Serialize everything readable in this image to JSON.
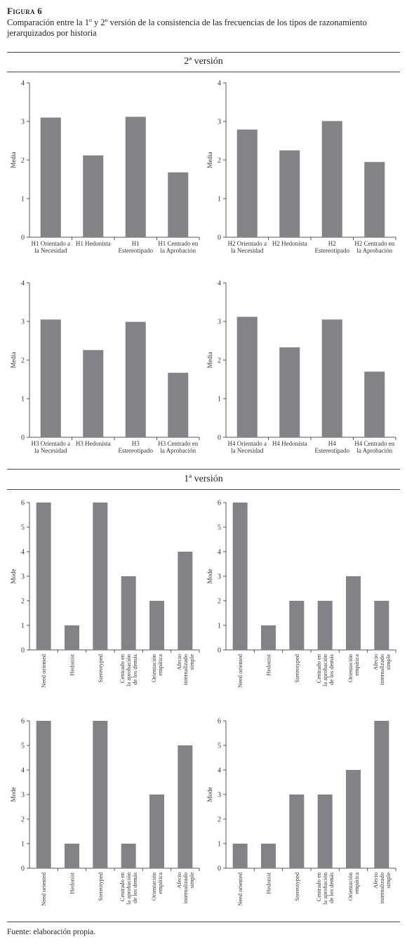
{
  "figure": {
    "label": "Figura 6",
    "caption": "Comparación entre la 1º y 2º versión de la consistencia de las frecuencias de los tipos de razonamiento jerarquizados por historia",
    "source": "Fuente: elaboración propia."
  },
  "sections": {
    "second": "2ª versión",
    "first": "1ª versión"
  },
  "chart_data": [
    {
      "type": "bar",
      "title": "",
      "xlabel": "",
      "ylabel": "Media",
      "ylim": [
        0,
        4
      ],
      "yticks": [
        "0",
        "1",
        "2",
        "3",
        "4"
      ],
      "color": "#838387",
      "categories": [
        "H1 Orientado a la Necesidad",
        "H1 Hedonista",
        "H1 Estereotipado",
        "H1 Centrado en la Aprobación"
      ],
      "values": [
        3.1,
        2.12,
        3.12,
        1.68
      ]
    },
    {
      "type": "bar",
      "title": "",
      "xlabel": "",
      "ylabel": "Media",
      "ylim": [
        0,
        4
      ],
      "yticks": [
        "0",
        "1",
        "2",
        "3",
        "4"
      ],
      "color": "#838387",
      "categories": [
        "H2 Orientado a la Necesidad",
        "H2 Hedonista",
        "H2 Estereotipado",
        "H2 Centrado en la Aprobación"
      ],
      "values": [
        2.79,
        2.25,
        3.01,
        1.95
      ]
    },
    {
      "type": "bar",
      "title": "",
      "xlabel": "",
      "ylabel": "Media",
      "ylim": [
        0,
        4
      ],
      "yticks": [
        "0",
        "1",
        "2",
        "3",
        "4"
      ],
      "color": "#838387",
      "categories": [
        "H3 Orientado a la Necesidad",
        "H3 Hedonista",
        "H3 Estereotipado",
        "H3 Centrado en la Aprobación"
      ],
      "values": [
        3.05,
        2.26,
        2.99,
        1.67
      ]
    },
    {
      "type": "bar",
      "title": "",
      "xlabel": "",
      "ylabel": "Media",
      "ylim": [
        0,
        4
      ],
      "yticks": [
        "0",
        "1",
        "2",
        "3",
        "4"
      ],
      "color": "#838387",
      "categories": [
        "H4 Orientado a la Necesidad",
        "H4 Hedonista",
        "H4 Estereotipado",
        "H4 Centrado en la Aprobación"
      ],
      "values": [
        3.12,
        2.33,
        3.05,
        1.7
      ]
    },
    {
      "type": "bar",
      "title": "",
      "xlabel": "",
      "ylabel": "Mode",
      "ylim": [
        0,
        6
      ],
      "yticks": [
        "0",
        "1",
        "2",
        "3",
        "4",
        "5",
        "6"
      ],
      "color": "#838387",
      "categories": [
        "Need oriented",
        "Hedonist",
        "Stereotyped",
        "Centrado en la aprobación de los demás",
        "Orientación empática",
        "Afecto internalizado simple"
      ],
      "values": [
        6,
        1,
        6,
        3,
        2,
        4
      ]
    },
    {
      "type": "bar",
      "title": "",
      "xlabel": "",
      "ylabel": "Mode",
      "ylim": [
        0,
        6
      ],
      "yticks": [
        "0",
        "1",
        "2",
        "3",
        "4",
        "5",
        "6"
      ],
      "color": "#838387",
      "categories": [
        "Need oriented",
        "Hedonist",
        "Stereotyped",
        "Centrado en la aprobación de los demás",
        "Orientación empática",
        "Afecto internalizado simple"
      ],
      "values": [
        6,
        1,
        2,
        2,
        3,
        2
      ]
    },
    {
      "type": "bar",
      "title": "",
      "xlabel": "",
      "ylabel": "Mode",
      "ylim": [
        0,
        6
      ],
      "yticks": [
        "0",
        "1",
        "2",
        "3",
        "4",
        "5",
        "6"
      ],
      "color": "#838387",
      "categories": [
        "Need oriented",
        "Hedonist",
        "Stereotyped",
        "Centrado en la aprobación de los demás",
        "Orientación empática",
        "Afecto internalizado simple"
      ],
      "values": [
        6,
        1,
        6,
        1,
        3,
        5
      ]
    },
    {
      "type": "bar",
      "title": "",
      "xlabel": "",
      "ylabel": "Mode",
      "ylim": [
        0,
        6
      ],
      "yticks": [
        "0",
        "1",
        "2",
        "3",
        "4",
        "5",
        "6"
      ],
      "color": "#838387",
      "categories": [
        "Need oriented",
        "Hedonist",
        "Stereotyped",
        "Centrado en la aprobación de los demás",
        "Orientación empática",
        "Afecto internalizado simple"
      ],
      "values": [
        1,
        1,
        3,
        3,
        4,
        6
      ]
    }
  ]
}
